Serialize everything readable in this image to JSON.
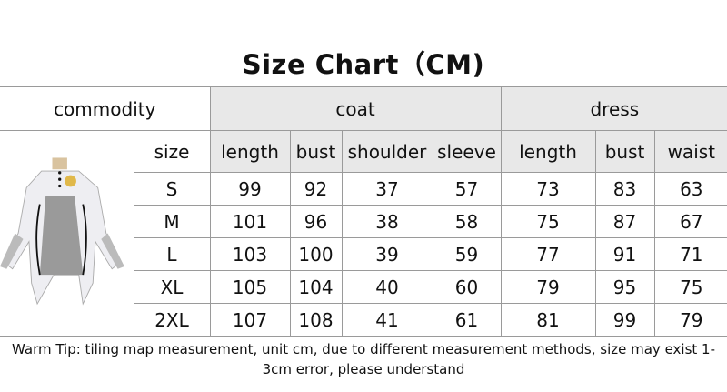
{
  "title": "Size Chart（CM)",
  "header": {
    "commodity": "commodity",
    "coat": "coat",
    "dress": "dress"
  },
  "subheader": {
    "size": "size",
    "coat": [
      "length",
      "bust",
      "shoulder",
      "sleeve"
    ],
    "dress": [
      "length",
      "bust",
      "waist"
    ]
  },
  "rows": [
    {
      "size": "S",
      "coat": [
        "99",
        "92",
        "37",
        "57"
      ],
      "dress": [
        "73",
        "83",
        "63"
      ]
    },
    {
      "size": "M",
      "coat": [
        "101",
        "96",
        "38",
        "58"
      ],
      "dress": [
        "75",
        "87",
        "67"
      ]
    },
    {
      "size": "L",
      "coat": [
        "103",
        "100",
        "39",
        "59"
      ],
      "dress": [
        "77",
        "91",
        "71"
      ]
    },
    {
      "size": "XL",
      "coat": [
        "105",
        "104",
        "40",
        "60"
      ],
      "dress": [
        "79",
        "95",
        "75"
      ]
    },
    {
      "size": "2XL",
      "coat": [
        "107",
        "108",
        "41",
        "61"
      ],
      "dress": [
        "81",
        "99",
        "79"
      ]
    }
  ],
  "note": "Warm Tip: tiling map measurement, unit cm, due to different measurement methods, size may exist 1-3cm error, please understand",
  "colors": {
    "header_bg": "#e8e8e8",
    "border": "#9a9a9a"
  }
}
